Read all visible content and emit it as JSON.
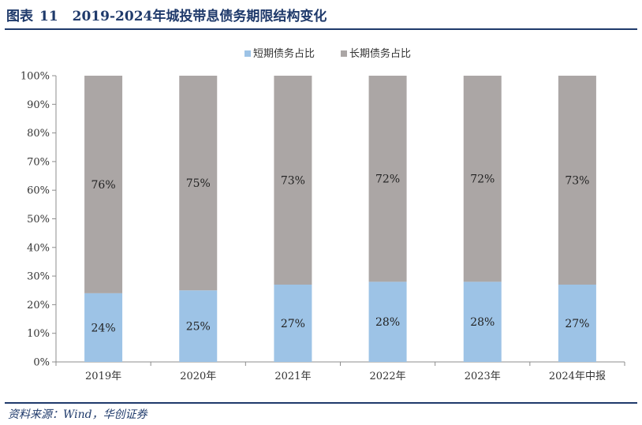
{
  "header": {
    "label": "图表",
    "number": "11",
    "title": "2019-2024年城投带息债务期限结构变化"
  },
  "footer": {
    "source": "资料来源：Wind，华创证券"
  },
  "colors": {
    "short": "#9dc3e6",
    "long": "#aba6a5",
    "rule": "#1f3a6b",
    "axis": "#8c8c8c"
  },
  "chart_data": {
    "type": "bar",
    "stacked": true,
    "categories": [
      "2019年",
      "2020年",
      "2021年",
      "2022年",
      "2023年",
      "2024年中报"
    ],
    "series": [
      {
        "name": "短期债务占比",
        "values": [
          24,
          25,
          27,
          28,
          28,
          27
        ],
        "labels": [
          "24%",
          "25%",
          "27%",
          "28%",
          "28%",
          "27%"
        ]
      },
      {
        "name": "长期债务占比",
        "values": [
          76,
          75,
          73,
          72,
          72,
          73
        ],
        "labels": [
          "76%",
          "75%",
          "73%",
          "72%",
          "72%",
          "73%"
        ]
      }
    ],
    "yticks": [
      "0%",
      "10%",
      "20%",
      "30%",
      "40%",
      "50%",
      "60%",
      "70%",
      "80%",
      "90%",
      "100%"
    ],
    "ylim": [
      0,
      100
    ],
    "legend_position": "top-center",
    "grid": false
  }
}
